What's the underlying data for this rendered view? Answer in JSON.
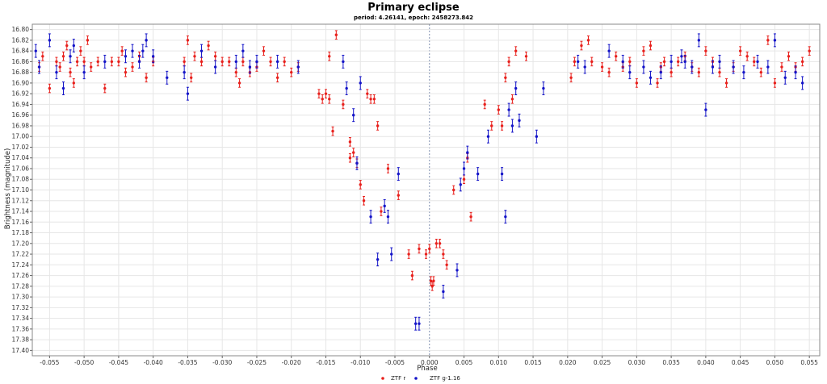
{
  "chart_data": {
    "type": "scatter",
    "title": "Primary eclipse",
    "subtitle": "period: 4.26141, epoch: 2458273.842",
    "xlabel": "Phase",
    "ylabel": "Brightness (magnitude)",
    "xlim": [
      -0.0575,
      0.0565
    ],
    "ylim": [
      16.79,
      17.41
    ],
    "y_inverted": true,
    "x_ticks": [
      -0.055,
      -0.05,
      -0.045,
      -0.04,
      -0.035,
      -0.03,
      -0.025,
      -0.02,
      -0.015,
      -0.01,
      -0.005,
      0.0,
      0.005,
      0.01,
      0.015,
      0.02,
      0.025,
      0.03,
      0.035,
      0.04,
      0.045,
      0.05,
      0.055
    ],
    "x_tick_labels": [
      "-0.055",
      "-0.050",
      "-0.045",
      "-0.040",
      "-0.035",
      "-0.030",
      "-0.025",
      "-0.020",
      "-0.015",
      "-0.010",
      "-0.005",
      "0.000",
      "0.005",
      "0.010",
      "0.015",
      "0.020",
      "0.025",
      "0.030",
      "0.035",
      "0.040",
      "0.045",
      "0.050",
      "0.055"
    ],
    "y_ticks": [
      16.8,
      16.82,
      16.84,
      16.86,
      16.88,
      16.9,
      16.92,
      16.94,
      16.96,
      16.98,
      17.0,
      17.02,
      17.04,
      17.06,
      17.08,
      17.1,
      17.12,
      17.14,
      17.16,
      17.18,
      17.2,
      17.22,
      17.24,
      17.26,
      17.28,
      17.3,
      17.32,
      17.34,
      17.36,
      17.38,
      17.4
    ],
    "y_tick_labels": [
      "16.80",
      "16.82",
      "16.84",
      "16.86",
      "16.88",
      "16.90",
      "16.92",
      "16.94",
      "16.96",
      "16.98",
      "17.00",
      "17.02",
      "17.04",
      "17.06",
      "17.08",
      "17.10",
      "17.12",
      "17.14",
      "17.16",
      "17.18",
      "17.20",
      "17.22",
      "17.24",
      "17.26",
      "17.28",
      "17.30",
      "17.32",
      "17.34",
      "17.36",
      "17.38",
      "17.40"
    ],
    "grid": true,
    "legend_position": "bottom-center",
    "series": [
      {
        "name": "ZTF r",
        "color": "#e8201c",
        "points": [
          [
            -0.0565,
            16.87,
            0.008
          ],
          [
            -0.056,
            16.85,
            0.008
          ],
          [
            -0.055,
            16.91,
            0.008
          ],
          [
            -0.054,
            16.86,
            0.008
          ],
          [
            -0.0535,
            16.87,
            0.008
          ],
          [
            -0.053,
            16.85,
            0.008
          ],
          [
            -0.0525,
            16.83,
            0.008
          ],
          [
            -0.052,
            16.88,
            0.008
          ],
          [
            -0.0515,
            16.9,
            0.008
          ],
          [
            -0.051,
            16.86,
            0.008
          ],
          [
            -0.0505,
            16.84,
            0.008
          ],
          [
            -0.05,
            16.86,
            0.008
          ],
          [
            -0.0495,
            16.82,
            0.008
          ],
          [
            -0.049,
            16.87,
            0.008
          ],
          [
            -0.048,
            16.86,
            0.008
          ],
          [
            -0.047,
            16.91,
            0.008
          ],
          [
            -0.046,
            16.86,
            0.008
          ],
          [
            -0.045,
            16.86,
            0.008
          ],
          [
            -0.0445,
            16.84,
            0.008
          ],
          [
            -0.044,
            16.88,
            0.008
          ],
          [
            -0.043,
            16.87,
            0.008
          ],
          [
            -0.042,
            16.85,
            0.008
          ],
          [
            -0.041,
            16.89,
            0.008
          ],
          [
            -0.04,
            16.86,
            0.008
          ],
          [
            -0.0355,
            16.86,
            0.008
          ],
          [
            -0.035,
            16.82,
            0.008
          ],
          [
            -0.0345,
            16.89,
            0.008
          ],
          [
            -0.034,
            16.85,
            0.008
          ],
          [
            -0.033,
            16.86,
            0.008
          ],
          [
            -0.032,
            16.83,
            0.008
          ],
          [
            -0.031,
            16.85,
            0.008
          ],
          [
            -0.03,
            16.86,
            0.008
          ],
          [
            -0.029,
            16.86,
            0.008
          ],
          [
            -0.028,
            16.88,
            0.008
          ],
          [
            -0.0275,
            16.9,
            0.008
          ],
          [
            -0.027,
            16.86,
            0.008
          ],
          [
            -0.026,
            16.88,
            0.008
          ],
          [
            -0.025,
            16.87,
            0.008
          ],
          [
            -0.024,
            16.84,
            0.008
          ],
          [
            -0.023,
            16.86,
            0.008
          ],
          [
            -0.022,
            16.89,
            0.008
          ],
          [
            -0.021,
            16.86,
            0.008
          ],
          [
            -0.02,
            16.88,
            0.008
          ],
          [
            -0.019,
            16.87,
            0.008
          ],
          [
            -0.0145,
            16.85,
            0.008
          ],
          [
            -0.016,
            16.92,
            0.008
          ],
          [
            -0.0155,
            16.93,
            0.008
          ],
          [
            -0.015,
            16.92,
            0.008
          ],
          [
            -0.0145,
            16.93,
            0.008
          ],
          [
            -0.0135,
            16.81,
            0.008
          ],
          [
            -0.014,
            16.99,
            0.008
          ],
          [
            -0.0125,
            16.94,
            0.008
          ],
          [
            -0.0115,
            17.01,
            0.008
          ],
          [
            -0.0115,
            17.04,
            0.008
          ],
          [
            -0.011,
            17.03,
            0.008
          ],
          [
            -0.0105,
            17.05,
            0.008
          ],
          [
            -0.01,
            17.09,
            0.008
          ],
          [
            -0.0095,
            17.12,
            0.008
          ],
          [
            -0.009,
            16.92,
            0.008
          ],
          [
            -0.0085,
            16.93,
            0.008
          ],
          [
            -0.008,
            16.93,
            0.008
          ],
          [
            -0.0075,
            16.98,
            0.008
          ],
          [
            -0.007,
            17.14,
            0.008
          ],
          [
            -0.006,
            17.06,
            0.008
          ],
          [
            -0.0045,
            17.11,
            0.008
          ],
          [
            -0.003,
            17.22,
            0.008
          ],
          [
            -0.0025,
            17.26,
            0.008
          ],
          [
            -0.0015,
            17.21,
            0.008
          ],
          [
            -0.0005,
            17.22,
            0.008
          ],
          [
            0.0,
            17.21,
            0.008
          ],
          [
            0.0002,
            17.27,
            0.008
          ],
          [
            0.0004,
            17.28,
            0.008
          ],
          [
            0.0006,
            17.27,
            0.008
          ],
          [
            0.001,
            17.2,
            0.008
          ],
          [
            0.0015,
            17.2,
            0.008
          ],
          [
            0.002,
            17.22,
            0.008
          ],
          [
            0.0025,
            17.24,
            0.008
          ],
          [
            0.0035,
            17.1,
            0.008
          ],
          [
            0.005,
            17.08,
            0.008
          ],
          [
            0.0055,
            17.04,
            0.008
          ],
          [
            0.006,
            17.15,
            0.008
          ],
          [
            0.008,
            16.94,
            0.008
          ],
          [
            0.009,
            16.98,
            0.008
          ],
          [
            0.01,
            16.95,
            0.008
          ],
          [
            0.0105,
            16.98,
            0.008
          ],
          [
            0.011,
            16.89,
            0.008
          ],
          [
            0.0115,
            16.86,
            0.008
          ],
          [
            0.012,
            16.93,
            0.008
          ],
          [
            0.0125,
            16.84,
            0.008
          ],
          [
            0.014,
            16.85,
            0.008
          ],
          [
            0.0205,
            16.89,
            0.008
          ],
          [
            0.021,
            16.86,
            0.008
          ],
          [
            0.022,
            16.83,
            0.008
          ],
          [
            0.023,
            16.82,
            0.008
          ],
          [
            0.0235,
            16.86,
            0.008
          ],
          [
            0.025,
            16.87,
            0.008
          ],
          [
            0.026,
            16.88,
            0.008
          ],
          [
            0.027,
            16.85,
            0.008
          ],
          [
            0.028,
            16.87,
            0.008
          ],
          [
            0.029,
            16.86,
            0.008
          ],
          [
            0.03,
            16.9,
            0.008
          ],
          [
            0.031,
            16.84,
            0.008
          ],
          [
            0.032,
            16.83,
            0.008
          ],
          [
            0.033,
            16.9,
            0.008
          ],
          [
            0.0335,
            16.87,
            0.008
          ],
          [
            0.034,
            16.86,
            0.008
          ],
          [
            0.035,
            16.88,
            0.008
          ],
          [
            0.036,
            16.86,
            0.008
          ],
          [
            0.037,
            16.85,
            0.008
          ],
          [
            0.038,
            16.87,
            0.008
          ],
          [
            0.039,
            16.88,
            0.008
          ],
          [
            0.04,
            16.84,
            0.008
          ],
          [
            0.041,
            16.86,
            0.008
          ],
          [
            0.042,
            16.88,
            0.008
          ],
          [
            0.043,
            16.9,
            0.008
          ],
          [
            0.044,
            16.87,
            0.008
          ],
          [
            0.045,
            16.84,
            0.008
          ],
          [
            0.046,
            16.85,
            0.008
          ],
          [
            0.047,
            16.86,
            0.008
          ],
          [
            0.048,
            16.88,
            0.008
          ],
          [
            0.049,
            16.82,
            0.008
          ],
          [
            0.05,
            16.9,
            0.008
          ],
          [
            0.051,
            16.87,
            0.008
          ],
          [
            0.052,
            16.85,
            0.008
          ],
          [
            0.053,
            16.87,
            0.008
          ],
          [
            0.054,
            16.86,
            0.008
          ],
          [
            0.055,
            16.84,
            0.008
          ]
        ]
      },
      {
        "name": "ZTF g-1.16",
        "color": "#1414c8",
        "points": [
          [
            -0.057,
            16.84,
            0.012
          ],
          [
            -0.0565,
            16.87,
            0.012
          ],
          [
            -0.055,
            16.82,
            0.012
          ],
          [
            -0.054,
            16.88,
            0.012
          ],
          [
            -0.053,
            16.91,
            0.012
          ],
          [
            -0.052,
            16.85,
            0.012
          ],
          [
            -0.0515,
            16.83,
            0.012
          ],
          [
            -0.05,
            16.88,
            0.012
          ],
          [
            -0.047,
            16.86,
            0.012
          ],
          [
            -0.044,
            16.85,
            0.012
          ],
          [
            -0.043,
            16.84,
            0.012
          ],
          [
            -0.042,
            16.86,
            0.012
          ],
          [
            -0.0415,
            16.84,
            0.012
          ],
          [
            -0.041,
            16.82,
            0.012
          ],
          [
            -0.04,
            16.85,
            0.012
          ],
          [
            -0.038,
            16.89,
            0.012
          ],
          [
            -0.0355,
            16.88,
            0.012
          ],
          [
            -0.035,
            16.92,
            0.012
          ],
          [
            -0.033,
            16.84,
            0.012
          ],
          [
            -0.031,
            16.87,
            0.012
          ],
          [
            -0.028,
            16.86,
            0.012
          ],
          [
            -0.027,
            16.84,
            0.012
          ],
          [
            -0.026,
            16.87,
            0.012
          ],
          [
            -0.025,
            16.86,
            0.012
          ],
          [
            -0.022,
            16.86,
            0.012
          ],
          [
            -0.019,
            16.87,
            0.012
          ],
          [
            -0.0125,
            16.86,
            0.012
          ],
          [
            -0.012,
            16.91,
            0.012
          ],
          [
            -0.011,
            16.96,
            0.012
          ],
          [
            -0.0105,
            17.05,
            0.012
          ],
          [
            -0.01,
            16.9,
            0.012
          ],
          [
            -0.0085,
            17.15,
            0.012
          ],
          [
            -0.0075,
            17.23,
            0.012
          ],
          [
            -0.0065,
            17.13,
            0.012
          ],
          [
            -0.006,
            17.15,
            0.012
          ],
          [
            -0.0055,
            17.22,
            0.012
          ],
          [
            -0.0045,
            17.07,
            0.012
          ],
          [
            -0.002,
            17.35,
            0.012
          ],
          [
            -0.0015,
            17.35,
            0.012
          ],
          [
            0.002,
            17.29,
            0.012
          ],
          [
            0.004,
            17.25,
            0.012
          ],
          [
            0.0045,
            17.09,
            0.012
          ],
          [
            0.005,
            17.06,
            0.012
          ],
          [
            0.0055,
            17.03,
            0.012
          ],
          [
            0.007,
            17.07,
            0.012
          ],
          [
            0.0085,
            17.0,
            0.012
          ],
          [
            0.0105,
            17.07,
            0.012
          ],
          [
            0.011,
            17.15,
            0.012
          ],
          [
            0.0115,
            16.95,
            0.012
          ],
          [
            0.012,
            16.98,
            0.012
          ],
          [
            0.0125,
            16.91,
            0.012
          ],
          [
            0.013,
            16.97,
            0.012
          ],
          [
            0.0155,
            17.0,
            0.012
          ],
          [
            0.0165,
            16.91,
            0.012
          ],
          [
            0.0215,
            16.86,
            0.012
          ],
          [
            0.0225,
            16.87,
            0.012
          ],
          [
            0.026,
            16.84,
            0.012
          ],
          [
            0.028,
            16.86,
            0.012
          ],
          [
            0.029,
            16.88,
            0.012
          ],
          [
            0.031,
            16.87,
            0.012
          ],
          [
            0.032,
            16.89,
            0.012
          ],
          [
            0.0335,
            16.88,
            0.012
          ],
          [
            0.035,
            16.86,
            0.012
          ],
          [
            0.0365,
            16.85,
            0.012
          ],
          [
            0.037,
            16.86,
            0.012
          ],
          [
            0.038,
            16.87,
            0.012
          ],
          [
            0.039,
            16.82,
            0.012
          ],
          [
            0.04,
            16.95,
            0.012
          ],
          [
            0.041,
            16.87,
            0.012
          ],
          [
            0.042,
            16.86,
            0.012
          ],
          [
            0.044,
            16.87,
            0.012
          ],
          [
            0.0455,
            16.88,
            0.012
          ],
          [
            0.0475,
            16.86,
            0.012
          ],
          [
            0.049,
            16.87,
            0.012
          ],
          [
            0.05,
            16.82,
            0.012
          ],
          [
            0.0515,
            16.89,
            0.012
          ],
          [
            0.053,
            16.88,
            0.012
          ],
          [
            0.054,
            16.9,
            0.012
          ]
        ]
      }
    ]
  }
}
